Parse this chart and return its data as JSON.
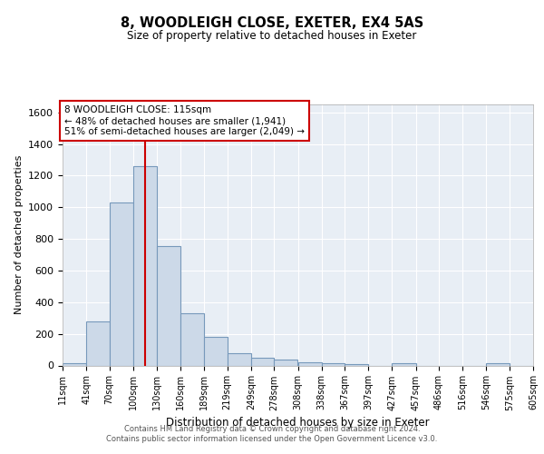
{
  "title": "8, WOODLEIGH CLOSE, EXETER, EX4 5AS",
  "subtitle": "Size of property relative to detached houses in Exeter",
  "xlabel": "Distribution of detached houses by size in Exeter",
  "ylabel": "Number of detached properties",
  "bar_color": "#ccd9e8",
  "bar_edge_color": "#7799bb",
  "background_color": "#e8eef5",
  "grid_color": "#ffffff",
  "annotation_line_color": "#cc0000",
  "annotation_box_edge_color": "#cc0000",
  "annotation_text_line1": "8 WOODLEIGH CLOSE: 115sqm",
  "annotation_text_line2": "← 48% of detached houses are smaller (1,941)",
  "annotation_text_line3": "51% of semi-detached houses are larger (2,049) →",
  "footer": "Contains HM Land Registry data © Crown copyright and database right 2024.\nContains public sector information licensed under the Open Government Licence v3.0.",
  "property_size": 115,
  "bin_edges": [
    11,
    41,
    70,
    100,
    130,
    160,
    189,
    219,
    249,
    278,
    308,
    338,
    367,
    397,
    427,
    457,
    486,
    516,
    546,
    575,
    605
  ],
  "bar_heights": [
    15,
    280,
    1030,
    1260,
    755,
    330,
    180,
    80,
    50,
    35,
    20,
    15,
    10,
    0,
    15,
    0,
    0,
    0,
    15,
    0
  ],
  "ylim": [
    0,
    1650
  ],
  "yticks": [
    0,
    200,
    400,
    600,
    800,
    1000,
    1200,
    1400,
    1600
  ],
  "tick_labels": [
    "11sqm",
    "41sqm",
    "70sqm",
    "100sqm",
    "130sqm",
    "160sqm",
    "189sqm",
    "219sqm",
    "249sqm",
    "278sqm",
    "308sqm",
    "338sqm",
    "367sqm",
    "397sqm",
    "427sqm",
    "457sqm",
    "486sqm",
    "516sqm",
    "546sqm",
    "575sqm",
    "605sqm"
  ]
}
